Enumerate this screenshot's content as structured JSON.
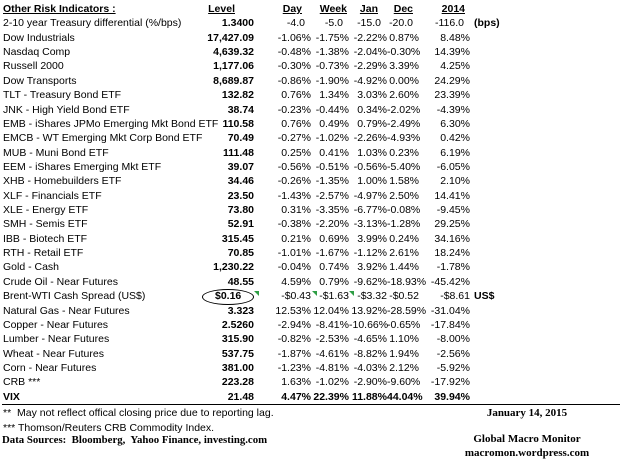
{
  "header": {
    "title": "Other Risk Indicators :",
    "columns": [
      "Level",
      "Day",
      "Week",
      "Jan",
      "Dec",
      "2014"
    ]
  },
  "rows": [
    {
      "label": "2-10 year Treasury differential (%/bps)",
      "level": "1.3400",
      "day": "-4.0",
      "week": "-5.0",
      "jan": "-15.0",
      "dec": "-20.0",
      "y2014": "-116.0",
      "suffix": "(bps)"
    },
    {
      "label": "Dow Industrials",
      "level": "17,427.09",
      "day": "-1.06%",
      "week": "-1.75%",
      "jan": "-2.22%",
      "dec": "0.87%",
      "y2014": "8.48%"
    },
    {
      "label": "Nasdaq Comp",
      "level": "4,639.32",
      "day": "-0.48%",
      "week": "-1.38%",
      "jan": "-2.04%",
      "dec": "-0.30%",
      "y2014": "14.39%"
    },
    {
      "label": "Russell 2000",
      "level": "1,177.06",
      "day": "-0.30%",
      "week": "-0.73%",
      "jan": "-2.29%",
      "dec": "3.39%",
      "y2014": "4.25%"
    },
    {
      "label": "Dow Transports",
      "level": "8,689.87",
      "day": "-0.86%",
      "week": "-1.90%",
      "jan": "-4.92%",
      "dec": "0.00%",
      "y2014": "24.29%"
    },
    {
      "label": "TLT - Treasury Bond ETF",
      "level": "132.82",
      "day": "0.76%",
      "week": "1.34%",
      "jan": "3.03%",
      "dec": "2.60%",
      "y2014": "23.39%"
    },
    {
      "label": "JNK - High Yield Bond ETF",
      "level": "38.74",
      "day": "-0.23%",
      "week": "-0.44%",
      "jan": "0.34%",
      "dec": "-2.02%",
      "y2014": "-4.39%"
    },
    {
      "label": "EMB - iShares JPMo Emerging Mkt Bond ETF",
      "level": "110.58",
      "day": "0.76%",
      "week": "0.49%",
      "jan": "0.79%",
      "dec": "-2.49%",
      "y2014": "6.30%"
    },
    {
      "label": "EMCB - WT Emerging Mkt Corp Bond ETF",
      "level": "70.49",
      "day": "-0.27%",
      "week": "-1.02%",
      "jan": "-2.26%",
      "dec": "-4.93%",
      "y2014": "0.42%"
    },
    {
      "label": "MUB - Muni Bond ETF",
      "level": "111.48",
      "day": "0.25%",
      "week": "0.41%",
      "jan": "1.03%",
      "dec": "0.23%",
      "y2014": "6.19%"
    },
    {
      "label": "EEM - iShares Emerging Mkt ETF",
      "level": "39.07",
      "day": "-0.56%",
      "week": "-0.51%",
      "jan": "-0.56%",
      "dec": "-5.40%",
      "y2014": "-6.05%"
    },
    {
      "label": "XHB - Homebuilders ETF",
      "level": "34.46",
      "day": "-0.26%",
      "week": "-1.35%",
      "jan": "1.00%",
      "dec": "1.58%",
      "y2014": "2.10%"
    },
    {
      "label": "XLF - Financials ETF",
      "level": "23.50",
      "day": "-1.43%",
      "week": "-2.57%",
      "jan": "-4.97%",
      "dec": "2.50%",
      "y2014": "14.41%"
    },
    {
      "label": "XLE - Energy ETF",
      "level": "73.80",
      "day": "0.31%",
      "week": "-3.35%",
      "jan": "-6.77%",
      "dec": "-0.08%",
      "y2014": "-9.45%"
    },
    {
      "label": "SMH - Semis ETF",
      "level": "52.91",
      "day": "-0.38%",
      "week": "-2.20%",
      "jan": "-3.13%",
      "dec": "-1.28%",
      "y2014": "29.25%"
    },
    {
      "label": "IBB - Biotech ETF",
      "level": "315.45",
      "day": "0.21%",
      "week": "0.69%",
      "jan": "3.99%",
      "dec": "0.24%",
      "y2014": "34.16%"
    },
    {
      "label": "RTH - Retail ETF",
      "level": "70.85",
      "day": "-1.01%",
      "week": "-1.67%",
      "jan": "-1.12%",
      "dec": "2.61%",
      "y2014": "18.24%"
    },
    {
      "label": "Gold - Cash",
      "level": "1,230.22",
      "day": "-0.04%",
      "week": "0.74%",
      "jan": "3.92%",
      "dec": "1.44%",
      "y2014": "-1.78%"
    },
    {
      "label": "Crude Oil - Near Futures",
      "level": "48.55",
      "day": "4.59%",
      "week": "0.79%",
      "jan": "-9.62%",
      "dec": "-18.93%",
      "y2014": "-45.42%"
    },
    {
      "label": "Brent-WTI Cash Spread (US$)",
      "level": "$0.16",
      "day": "-$0.43",
      "week": "-$1.63",
      "jan": "-$3.32",
      "dec": "-$0.52",
      "y2014": "-$8.61",
      "suffix": "US$",
      "circled": "level",
      "flags": [
        "level",
        "day",
        "week"
      ]
    },
    {
      "label": "Natural Gas - Near Futures",
      "level": "3.323",
      "day": "12.53%",
      "week": "12.04%",
      "jan": "13.92%",
      "dec": "-28.59%",
      "y2014": "-31.04%"
    },
    {
      "label": "Copper - Near Futures",
      "level": "2.5260",
      "day": "-2.94%",
      "week": "-8.41%",
      "jan": "-10.66%",
      "dec": "-0.65%",
      "y2014": "-17.84%"
    },
    {
      "label": "Lumber - Near Futures",
      "level": "315.90",
      "day": "-0.82%",
      "week": "-2.53%",
      "jan": "-4.65%",
      "dec": "1.10%",
      "y2014": "-8.00%"
    },
    {
      "label": "Wheat - Near Futures",
      "level": "537.75",
      "day": "-1.87%",
      "week": "-4.61%",
      "jan": "-8.82%",
      "dec": "1.94%",
      "y2014": "-2.56%"
    },
    {
      "label": "Corn - Near Futures",
      "level": "381.00",
      "day": "-1.23%",
      "week": "-4.81%",
      "jan": "-4.03%",
      "dec": "2.12%",
      "y2014": "-5.92%"
    },
    {
      "label": "CRB ***",
      "level": "223.28",
      "day": "1.63%",
      "week": "-1.02%",
      "jan": "-2.90%",
      "dec": "-9.60%",
      "y2014": "-17.92%"
    },
    {
      "label": "VIX",
      "level": "21.48",
      "day": "4.47%",
      "week": "22.39%",
      "jan": "11.88%",
      "dec": "44.04%",
      "y2014": "39.94%",
      "bold": true
    }
  ],
  "footnotes": {
    "lag_note": "**  May not reflect offical closing price due to reporting lag.",
    "crb_note": "*** Thomson/Reuters CRB Commodity Index.",
    "data_sources": "Data Sources:  Bloomberg,  Yahoo Finance, investing.com"
  },
  "footer": {
    "date": "January 14, 2015",
    "brand": "Global Macro Monitor",
    "site": "macromon.wordpress.com"
  },
  "colors": {
    "text": "#000000",
    "background": "#ffffff",
    "comment_flag_green": "#2e9e44",
    "annotation_circle": "#000000"
  }
}
